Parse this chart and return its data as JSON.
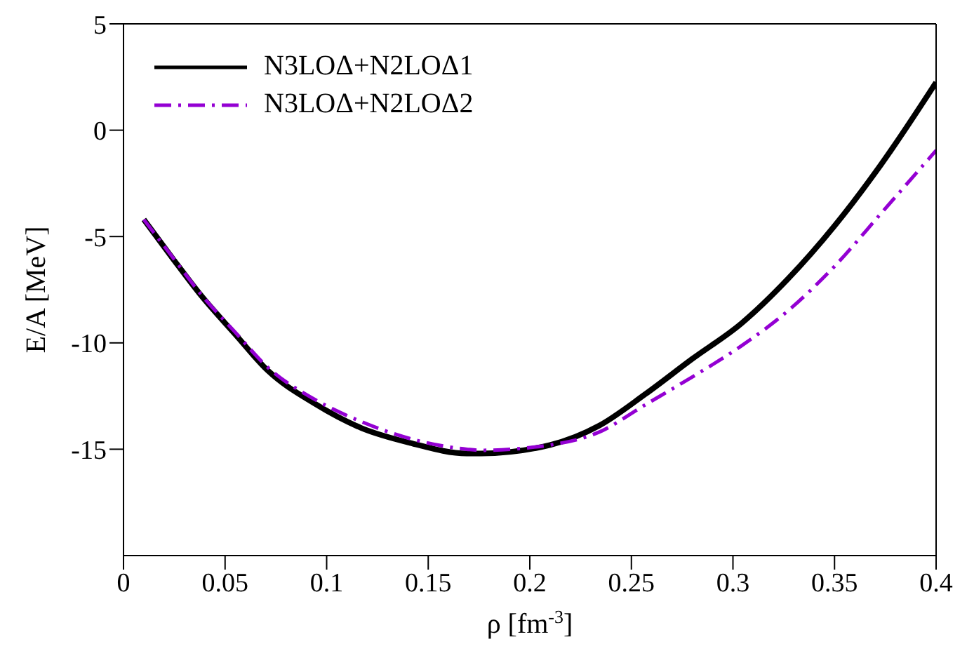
{
  "chart_data": {
    "type": "line",
    "xlabel": "ρ [fm$^{-3}$]",
    "ylabel": "E/A [MeV]",
    "xlim": [
      0,
      0.4
    ],
    "xticks": [
      0,
      0.05,
      0.1,
      0.15,
      0.2,
      0.25,
      0.3,
      0.35,
      0.4
    ],
    "ylim": [
      -20,
      5
    ],
    "yticks": [
      -15,
      -10,
      -5,
      0,
      5
    ],
    "grid": false,
    "legend": "top left",
    "series": [
      {
        "name": "N3LOΔ+N2LOΔ1",
        "color": "#000000",
        "line_style": "solid",
        "x": [
          0.01,
          0.024,
          0.038,
          0.055,
          0.071,
          0.094,
          0.117,
          0.141,
          0.169,
          0.176,
          0.21,
          0.234,
          0.257,
          0.28,
          0.304,
          0.327,
          0.35,
          0.373,
          0.4
        ],
        "values": [
          -4.2,
          -6.0,
          -7.75,
          -9.6,
          -11.3,
          -12.85,
          -14.0,
          -14.7,
          -15.2,
          -15.2,
          -14.8,
          -13.9,
          -12.4,
          -10.75,
          -9.1,
          -7.0,
          -4.5,
          -1.6,
          2.25
        ]
      },
      {
        "name": "N3LOΔ+N2LOΔ2",
        "color": "#9400d3",
        "line_style": "dashdot",
        "x": [
          0.01,
          0.024,
          0.038,
          0.055,
          0.071,
          0.094,
          0.117,
          0.141,
          0.169,
          0.176,
          0.21,
          0.234,
          0.257,
          0.28,
          0.304,
          0.327,
          0.35,
          0.373,
          0.4
        ],
        "values": [
          -4.2,
          -5.95,
          -7.7,
          -9.5,
          -11.15,
          -12.65,
          -13.7,
          -14.5,
          -15.0,
          -15.05,
          -14.8,
          -14.2,
          -12.9,
          -11.6,
          -10.15,
          -8.5,
          -6.4,
          -3.9,
          -0.95
        ]
      }
    ]
  }
}
